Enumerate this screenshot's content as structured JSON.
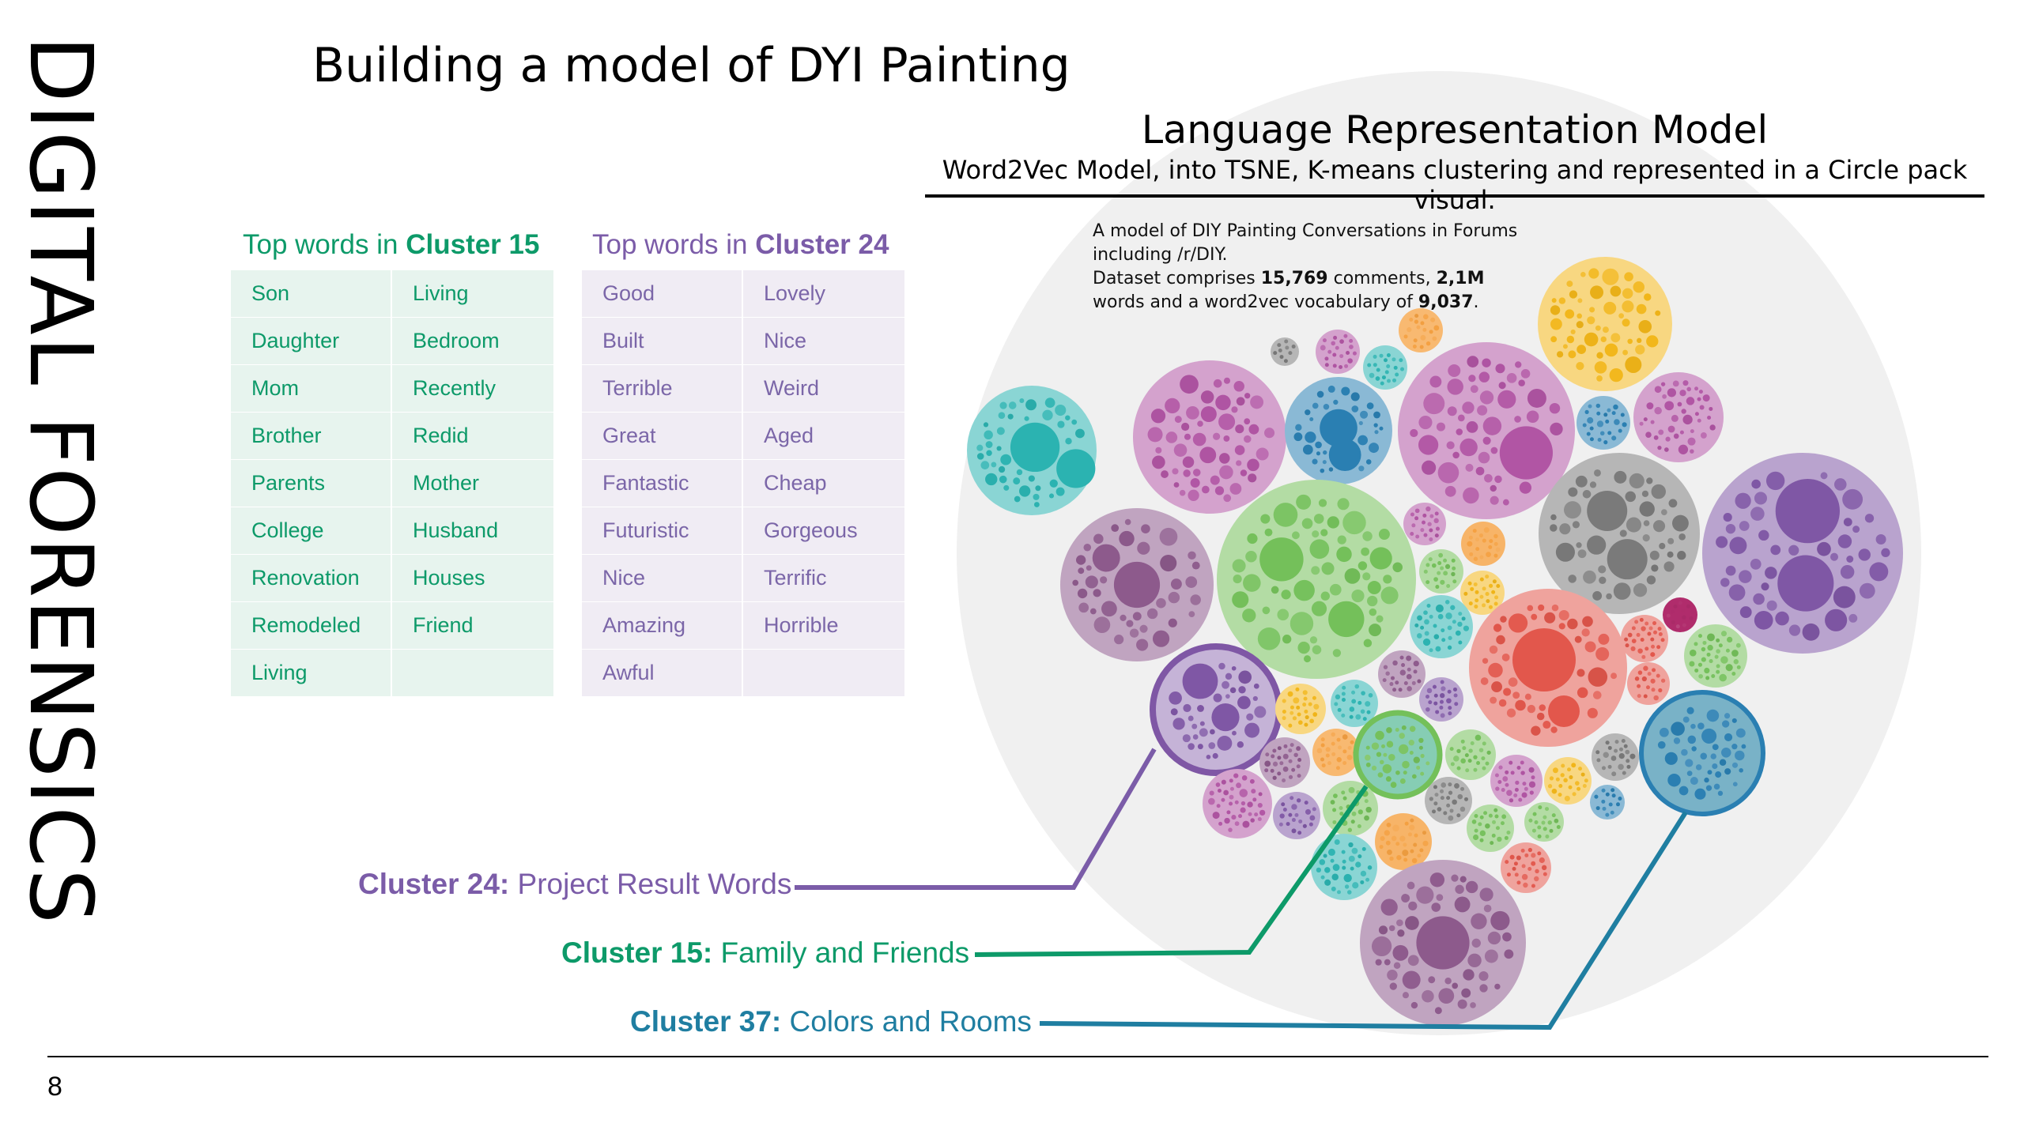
{
  "sidebar": {
    "title": "DIGITAL FORENSICS"
  },
  "slide": {
    "title": "Building a model of DYI Painting",
    "page_number": "8"
  },
  "model": {
    "title": "Language Representation Model",
    "subtitle": "Word2Vec Model, into TSNE, K-means clustering and represented in a Circle pack visual.",
    "description": {
      "line1": "A model of DIY Painting Conversations in Forums",
      "line2": "including /r/DIY.",
      "line3_a": "Dataset comprises ",
      "comments": "15,769",
      "line3_b": " comments, ",
      "words": "2,1M",
      "line4_a": "words and  a word2vec vocabulary of ",
      "vocab": "9,037",
      "line4_b": "."
    }
  },
  "cluster15": {
    "heading_prefix": "Top words in ",
    "heading_name": "Cluster 15",
    "color": "#0d9a69",
    "words": [
      "Son",
      "Living",
      "Daughter",
      "Bedroom",
      "Mom",
      "Recently",
      "Brother",
      "Redid",
      "Parents",
      "Mother",
      "College",
      "Husband",
      "Renovation",
      "Houses",
      "Remodeled",
      "Friend",
      "Living",
      ""
    ]
  },
  "cluster24": {
    "heading_prefix": "Top words in ",
    "heading_name": "Cluster 24",
    "color": "#7b5ca8",
    "words": [
      "Good",
      "Lovely",
      "Built",
      "Nice",
      "Terrible",
      "Weird",
      "Great",
      "Aged",
      "Fantastic",
      "Cheap",
      "Futuristic",
      "Gorgeous",
      "Nice",
      "Terrific",
      "Amazing",
      "Horrible",
      "Awful",
      ""
    ]
  },
  "callouts": [
    {
      "name": "Cluster 24:",
      "text": " Project Result Words",
      "color": "#7b5ca8"
    },
    {
      "name": "Cluster 15:",
      "text": " Family and Friends",
      "color": "#0d9a69"
    },
    {
      "name": "Cluster 37:",
      "text": " Colors and Rooms",
      "color": "#1f7ea1"
    }
  ],
  "palette": {
    "background_circle": "#f0f0f0",
    "teal": "#2bb3b1",
    "magenta": "#b155a4",
    "purple": "#7f57a5",
    "mauve": "#8d5a8c",
    "green": "#74c05a",
    "gray": "#7a7a7a",
    "yellow": "#f2b619",
    "blue": "#2a7fb2",
    "red": "#e2574c",
    "orange": "#f5a142"
  }
}
